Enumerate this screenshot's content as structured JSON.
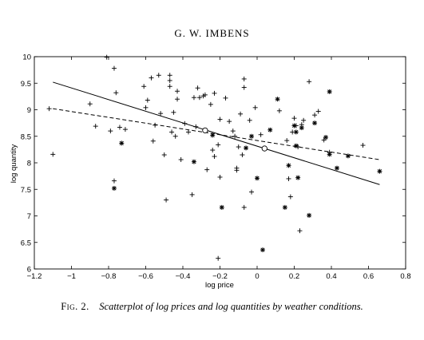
{
  "header": {
    "running_title": "G. W. IMBENS"
  },
  "caption": {
    "label": "Fig. 2.",
    "text": "Scatterplot of log prices and log quantities by weather conditions."
  },
  "chart_data": {
    "type": "scatter",
    "xlabel": "log price",
    "ylabel": "log quantity",
    "xlim": [
      -1.2,
      0.8
    ],
    "ylim": [
      6,
      10
    ],
    "xticks": [
      -1.2,
      -1,
      -0.8,
      -0.6,
      -0.4,
      -0.2,
      0,
      0.2,
      0.4,
      0.6,
      0.8
    ],
    "xtick_labels": [
      "−1.2",
      "−1",
      "−0.8",
      "−0.6",
      "−0.4",
      "−0.2",
      "0",
      "0.2",
      "0.4",
      "0.6",
      "0.8"
    ],
    "yticks": [
      6,
      6.5,
      7,
      7.5,
      8,
      8.5,
      9,
      9.5,
      10
    ],
    "ytick_labels": [
      "6",
      "6.5",
      "7",
      "7.5",
      "8",
      "8.5",
      "9",
      "9.5",
      "10"
    ],
    "grid": false,
    "series": [
      {
        "marker": "plus",
        "points": [
          [
            -1.12,
            9.02
          ],
          [
            -1.1,
            8.16
          ],
          [
            -0.9,
            9.11
          ],
          [
            -0.87,
            8.69
          ],
          [
            -0.81,
            9.99
          ],
          [
            -0.79,
            8.6
          ],
          [
            -0.77,
            9.78
          ],
          [
            -0.76,
            9.32
          ],
          [
            -0.77,
            7.66
          ],
          [
            -0.74,
            8.67
          ],
          [
            -0.71,
            8.63
          ],
          [
            -0.61,
            9.44
          ],
          [
            -0.6,
            9.04
          ],
          [
            -0.59,
            9.18
          ],
          [
            -0.57,
            9.6
          ],
          [
            -0.56,
            8.41
          ],
          [
            -0.55,
            8.71
          ],
          [
            -0.53,
            9.65
          ],
          [
            -0.52,
            8.93
          ],
          [
            -0.5,
            8.15
          ],
          [
            -0.49,
            7.3
          ],
          [
            -0.47,
            9.65
          ],
          [
            -0.47,
            9.55
          ],
          [
            -0.47,
            9.44
          ],
          [
            -0.46,
            8.58
          ],
          [
            -0.45,
            8.95
          ],
          [
            -0.44,
            8.5
          ],
          [
            -0.43,
            9.35
          ],
          [
            -0.43,
            9.2
          ],
          [
            -0.41,
            8.06
          ],
          [
            -0.39,
            8.74
          ],
          [
            -0.37,
            8.58
          ],
          [
            -0.35,
            7.4
          ],
          [
            -0.34,
            9.23
          ],
          [
            -0.33,
            8.68
          ],
          [
            -0.32,
            9.41
          ],
          [
            -0.31,
            9.23
          ],
          [
            -0.29,
            9.26
          ],
          [
            -0.28,
            9.28
          ],
          [
            -0.27,
            7.87
          ],
          [
            -0.25,
            9.1
          ],
          [
            -0.24,
            8.24
          ],
          [
            -0.23,
            9.31
          ],
          [
            -0.23,
            8.12
          ],
          [
            -0.21,
            8.34
          ],
          [
            -0.2,
            8.82
          ],
          [
            -0.2,
            7.73
          ],
          [
            -0.17,
            9.22
          ],
          [
            -0.15,
            8.78
          ],
          [
            -0.13,
            8.6
          ],
          [
            -0.12,
            8.5
          ],
          [
            -0.11,
            7.9
          ],
          [
            -0.1,
            8.3
          ],
          [
            -0.09,
            8.92
          ],
          [
            -0.08,
            8.15
          ],
          [
            -0.07,
            9.58
          ],
          [
            -0.07,
            9.42
          ],
          [
            -0.04,
            8.8
          ],
          [
            -0.03,
            7.45
          ],
          [
            -0.01,
            9.04
          ],
          [
            0.02,
            8.53
          ],
          [
            0.12,
            8.98
          ],
          [
            0.16,
            8.42
          ],
          [
            0.17,
            7.7
          ],
          [
            0.18,
            7.36
          ],
          [
            0.19,
            8.58
          ],
          [
            0.2,
            8.84
          ],
          [
            0.21,
            8.7
          ],
          [
            0.22,
            8.3
          ],
          [
            0.23,
            6.72
          ],
          [
            0.24,
            8.72
          ],
          [
            0.25,
            8.8
          ],
          [
            0.28,
            9.53
          ],
          [
            0.31,
            8.9
          ],
          [
            0.33,
            8.97
          ],
          [
            0.36,
            8.43
          ],
          [
            0.39,
            8.2
          ],
          [
            0.57,
            8.33
          ],
          [
            -0.21,
            6.2
          ],
          [
            -0.07,
            7.16
          ],
          [
            -0.11,
            7.86
          ]
        ]
      },
      {
        "marker": "star",
        "points": [
          [
            -0.77,
            7.52
          ],
          [
            -0.73,
            8.37
          ],
          [
            -0.34,
            8.02
          ],
          [
            -0.19,
            7.16
          ],
          [
            0.0,
            7.71
          ],
          [
            0.03,
            6.36
          ],
          [
            0.07,
            8.62
          ],
          [
            0.11,
            9.2
          ],
          [
            0.15,
            7.16
          ],
          [
            0.17,
            7.95
          ],
          [
            0.2,
            8.7
          ],
          [
            0.21,
            8.58
          ],
          [
            0.21,
            8.32
          ],
          [
            0.22,
            7.72
          ],
          [
            0.24,
            8.66
          ],
          [
            0.28,
            7.01
          ],
          [
            0.31,
            8.75
          ],
          [
            0.37,
            8.48
          ],
          [
            0.39,
            9.34
          ],
          [
            0.39,
            8.16
          ],
          [
            0.43,
            7.9
          ],
          [
            0.49,
            8.13
          ],
          [
            0.66,
            7.84
          ],
          [
            -0.24,
            8.52
          ],
          [
            -0.06,
            8.28
          ],
          [
            -0.03,
            8.5
          ]
        ]
      },
      {
        "marker": "circle",
        "points": [
          [
            -0.28,
            8.61
          ],
          [
            0.04,
            8.27
          ]
        ]
      }
    ],
    "lines": [
      {
        "style": "solid",
        "points": [
          [
            -1.1,
            9.52
          ],
          [
            0.66,
            7.59
          ]
        ]
      },
      {
        "style": "dashed",
        "points": [
          [
            -1.1,
            9.02
          ],
          [
            0.66,
            8.06
          ]
        ]
      }
    ]
  }
}
